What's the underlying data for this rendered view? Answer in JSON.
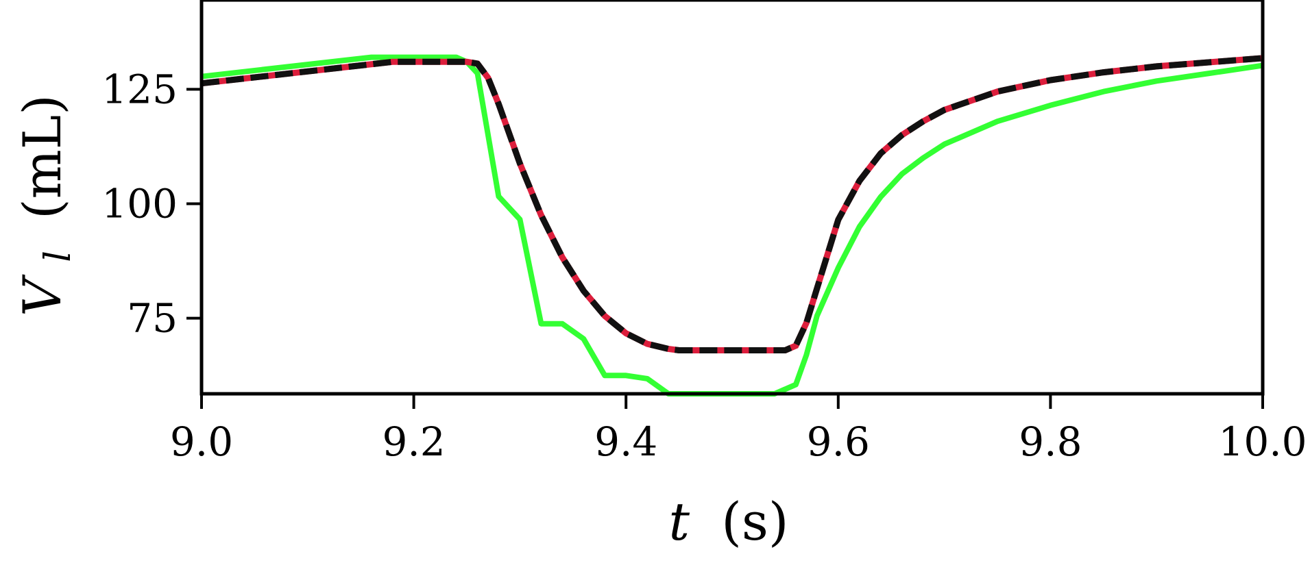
{
  "chart_data": {
    "type": "line",
    "xlabel_var": "t",
    "xlabel_unit": "(s)",
    "ylabel_var": "V",
    "ylabel_sub": "l",
    "ylabel_unit": "(mL)",
    "xlim": [
      9.0,
      10.0
    ],
    "ylim": [
      58.5,
      144.5
    ],
    "xticks": [
      9.0,
      9.2,
      9.4,
      9.6,
      9.8,
      10.0
    ],
    "xtick_labels": [
      "9.0",
      "9.2",
      "9.4",
      "9.6",
      "9.8",
      "10.0"
    ],
    "yticks": [
      75,
      100,
      125
    ],
    "ytick_labels": [
      "75",
      "100",
      "125"
    ],
    "grid": false,
    "legend": "none",
    "series": [
      {
        "color": "#b03a8a",
        "style": "solid",
        "x": [
          9.0,
          9.18,
          9.25,
          9.26,
          9.27,
          9.28,
          9.3,
          9.32,
          9.34,
          9.36,
          9.38,
          9.4,
          9.42,
          9.44,
          9.45,
          9.55,
          9.56,
          9.57,
          9.58,
          9.59,
          9.6,
          9.62,
          9.64,
          9.66,
          9.68,
          9.7,
          9.75,
          9.8,
          9.85,
          9.9,
          9.95,
          10.0
        ],
        "y": [
          126.3,
          131.0,
          131.0,
          130.6,
          127.5,
          121.8,
          108.8,
          97.5,
          88.3,
          81.0,
          75.5,
          71.7,
          69.4,
          68.3,
          68.0,
          68.0,
          69.0,
          74.0,
          81.5,
          89.0,
          96.5,
          105.0,
          111.0,
          115.0,
          118.0,
          120.5,
          124.5,
          127.0,
          128.7,
          130.0,
          130.9,
          131.8
        ]
      },
      {
        "color": "#33ff33",
        "style": "solid",
        "x": [
          9.0,
          9.16,
          9.24,
          9.25,
          9.26,
          9.28,
          9.3,
          9.32,
          9.34,
          9.36,
          9.38,
          9.4,
          9.42,
          9.44,
          9.54,
          9.56,
          9.57,
          9.58,
          9.6,
          9.62,
          9.64,
          9.66,
          9.68,
          9.7,
          9.75,
          9.8,
          9.85,
          9.9,
          9.95,
          10.0
        ],
        "y": [
          127.8,
          132.0,
          132.0,
          131.0,
          128.5,
          101.6,
          96.6,
          73.8,
          73.8,
          70.5,
          62.5,
          62.5,
          61.8,
          58.5,
          58.5,
          60.5,
          67.0,
          75.5,
          86.0,
          95.0,
          101.5,
          106.5,
          110.0,
          113.0,
          118.0,
          121.5,
          124.5,
          126.8,
          128.5,
          130.2
        ]
      },
      {
        "color": "#111111",
        "style": "dashed",
        "x": [
          9.0,
          9.18,
          9.25,
          9.26,
          9.27,
          9.28,
          9.3,
          9.32,
          9.34,
          9.36,
          9.38,
          9.4,
          9.42,
          9.44,
          9.45,
          9.55,
          9.56,
          9.57,
          9.58,
          9.59,
          9.6,
          9.62,
          9.64,
          9.66,
          9.68,
          9.7,
          9.75,
          9.8,
          9.85,
          9.9,
          9.95,
          10.0
        ],
        "y": [
          126.3,
          131.0,
          131.0,
          130.6,
          127.5,
          121.8,
          108.8,
          97.5,
          88.3,
          81.0,
          75.5,
          71.7,
          69.4,
          68.3,
          68.0,
          68.0,
          69.0,
          74.0,
          81.5,
          89.0,
          96.5,
          105.0,
          111.0,
          115.0,
          118.0,
          120.5,
          124.5,
          127.0,
          128.7,
          130.0,
          130.9,
          131.8
        ]
      }
    ]
  }
}
